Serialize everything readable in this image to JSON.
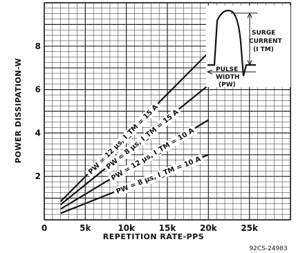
{
  "chart_data": {
    "type": "line",
    "xlabel": "REPETITION RATE-PPS",
    "ylabel": "POWER DISSIPATION-W",
    "xlim": [
      0,
      30000
    ],
    "ylim": [
      0,
      10
    ],
    "x_ticks": [
      "0",
      "5k",
      "10k",
      "15k",
      "20k",
      "25k"
    ],
    "y_ticks": [
      "2",
      "4",
      "6",
      "8"
    ],
    "grid": true,
    "series": [
      {
        "name": "PW = 12 μs, I_TM = 15 A",
        "x": [
          2000,
          20000
        ],
        "y": [
          0.85,
          7.7
        ]
      },
      {
        "name": "PW = 8 μs, I_TM = 15 A",
        "x": [
          2000,
          20000
        ],
        "y": [
          0.7,
          6.2
        ]
      },
      {
        "name": "PW = 12 μs, I_TM = 10 A",
        "x": [
          2000,
          20000
        ],
        "y": [
          0.5,
          4.6
        ]
      },
      {
        "name": "PW = 8 μs, I_TM = 10 A",
        "x": [
          2000,
          20000
        ],
        "y": [
          0.3,
          3.0
        ]
      }
    ],
    "inset": {
      "label_surge_1": "SURGE",
      "label_surge_2": "CURRENT",
      "label_surge_3": "(I TM)",
      "label_pulse_1": "PULSE",
      "label_pulse_2": "WIDTH",
      "label_pulse_3": "(PW)"
    },
    "figure_code": "92CS-24983"
  }
}
